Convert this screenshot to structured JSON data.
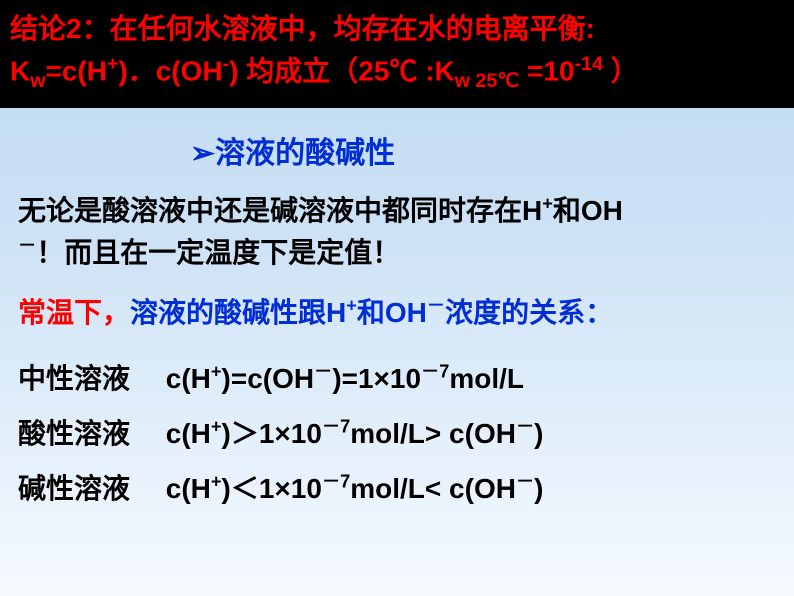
{
  "header": {
    "line1_prefix": "结论2：在任何水溶液中，均存在水的电离平衡:",
    "line2_kw": "K",
    "line2_wsub": "w",
    "line2_eq": "=c(H",
    "line2_hplus": "+",
    "line2_dot": ")．c(OH",
    "line2_ohminus": "-",
    "line2_close": ")  均成立（25℃ :K",
    "line2_wsub2": "w 25℃",
    "line2_val": " =10",
    "line2_exp": "-14",
    "line2_end": " ）"
  },
  "section": {
    "arrow": "➢",
    "title": "溶液的酸碱性"
  },
  "body1": {
    "text_a": "无论是酸溶液中还是碱溶液中都同时存在H",
    "sup1": "+",
    "text_b": "和OH",
    "text_c": "！而且在一定温度下是定值！",
    "minus": "－"
  },
  "body2": {
    "red": "常温下，",
    "blue_a": "溶液的酸碱性跟H",
    "sup1": "+",
    "blue_b": "和OH",
    "minus": "－",
    "blue_c": "浓度的关系：",
    "space": " "
  },
  "equations": {
    "neutral": {
      "label": "中性溶液",
      "eq_a": "c(H",
      "plus": "+",
      "eq_b": ")=c(OH",
      "minus": "－",
      "eq_c": ")=1×10",
      "exp": "－7",
      "eq_d": "mol/L"
    },
    "acidic": {
      "label": "酸性溶液",
      "eq_a": "c(H",
      "plus": "+",
      "eq_b": ")＞1×10",
      "exp": "－7",
      "eq_c": "mol/L> c(OH",
      "minus": "－",
      "eq_d": ")"
    },
    "basic": {
      "label": "碱性溶液",
      "eq_a": "c(H",
      "plus": "+",
      "eq_b": ")＜1×10",
      "exp": "－7",
      "eq_c": "mol/L< c(OH",
      "minus": "－",
      "eq_d": ")"
    }
  }
}
